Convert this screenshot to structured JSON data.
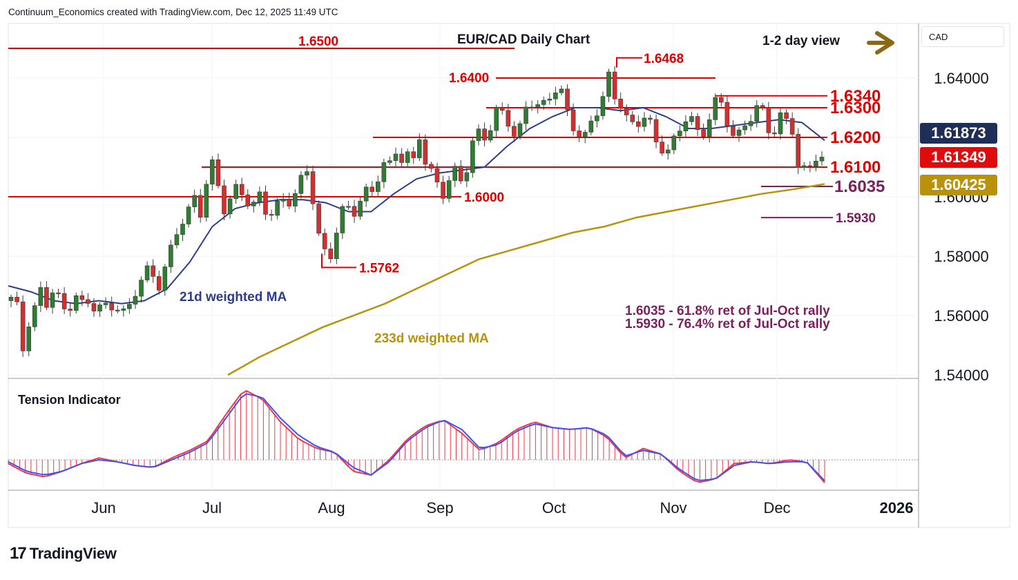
{
  "attribution": "Continuum_Economics created with TradingView.com, Dec 12, 2025 11:49 UTC",
  "brand": "TradingView",
  "currency": "CAD",
  "title": "EUR/CAD Daily Chart",
  "view_label": "1-2 day view",
  "colors": {
    "resistance_line": "#e00000",
    "retracement_line": "#7a1f5c",
    "candle_up": "#2e7d32",
    "candle_down": "#d32f2f",
    "ma21": "#2a3d8f",
    "ma233": "#b8920a",
    "arrow": "#8b6914",
    "tension_red": "#f23645",
    "tension_blue": "#3f51f5"
  },
  "price_tags": [
    {
      "value": "1.61873",
      "bg": "#1e2e57"
    },
    {
      "value": "1.61349",
      "bg": "#e00c0c"
    },
    {
      "value": "1.60425",
      "bg": "#b8920a"
    }
  ],
  "chart_data": [
    {
      "type": "candlestick",
      "title": "EUR/CAD Daily Chart",
      "y_ticks": [
        "1.64000",
        "1.62000",
        "1.60000",
        "1.58000",
        "1.56000",
        "1.54000"
      ],
      "x_ticks": [
        "Jun",
        "Jul",
        "Aug",
        "Sep",
        "Oct",
        "Nov",
        "Dec",
        "2026"
      ],
      "ylim": [
        1.5386,
        1.6497
      ],
      "ohlc_path": [
        1.565,
        1.562,
        1.548,
        1.56,
        1.564,
        1.569,
        1.562,
        1.569,
        1.564,
        1.561,
        1.566,
        1.569,
        1.561,
        1.565,
        1.56,
        1.564,
        1.562,
        1.566,
        1.562,
        1.56,
        1.565,
        1.57,
        1.575,
        1.576,
        1.57,
        1.575,
        1.58,
        1.586,
        1.591,
        1.595,
        1.601,
        1.595,
        1.605,
        1.61,
        1.602,
        1.595,
        1.6,
        1.604,
        1.602,
        1.598,
        1.596,
        1.6,
        1.593,
        1.596,
        1.599,
        1.6,
        1.598,
        1.602,
        1.606,
        1.61,
        1.59,
        1.586,
        1.577,
        1.585,
        1.593,
        1.596,
        1.594,
        1.599,
        1.603,
        1.601,
        1.605,
        1.61,
        1.609,
        1.616,
        1.614,
        1.615,
        1.612,
        1.62,
        1.61,
        1.607,
        1.605,
        1.602,
        1.607,
        1.609,
        1.604,
        1.61,
        1.62,
        1.623,
        1.621,
        1.626,
        1.63,
        1.626,
        1.623,
        1.617,
        1.63,
        1.634,
        1.631,
        1.629,
        1.632,
        1.635,
        1.637,
        1.631,
        1.626,
        1.621,
        1.618,
        1.624,
        1.628,
        1.633,
        1.642,
        1.635,
        1.631,
        1.625,
        1.623,
        1.625,
        1.628,
        1.625,
        1.618,
        1.616,
        1.614,
        1.619,
        1.624,
        1.629,
        1.626,
        1.62,
        1.623,
        1.628,
        1.633,
        1.629,
        1.623,
        1.62,
        1.624,
        1.625,
        1.628,
        1.63,
        1.624,
        1.622,
        1.628,
        1.626,
        1.624,
        1.609,
        1.608,
        1.611,
        1.615,
        1.6135
      ],
      "series": [
        {
          "name": "21d weighted MA",
          "values": [
            1.57,
            1.568,
            1.565,
            1.564,
            1.565,
            1.564,
            1.565,
            1.569,
            1.578,
            1.59,
            1.596,
            1.598,
            1.599,
            1.599,
            1.598,
            1.595,
            1.595,
            1.601,
            1.606,
            1.608,
            1.609,
            1.61,
            1.617,
            1.623,
            1.627,
            1.63,
            1.63,
            1.629,
            1.63,
            1.627,
            1.623,
            1.623,
            1.624,
            1.625,
            1.626,
            1.625,
            1.619
          ]
        },
        {
          "name": "233d weighted MA",
          "values": [
            1.54,
            1.546,
            1.551,
            1.556,
            1.56,
            1.564,
            1.569,
            1.574,
            1.579,
            1.582,
            1.585,
            1.588,
            1.59,
            1.593,
            1.595,
            1.597,
            1.599,
            1.601,
            1.6025,
            1.6043
          ]
        }
      ],
      "levels": [
        {
          "label": "1.6500",
          "value": 1.65
        },
        {
          "label": "1.6468",
          "value": 1.6468
        },
        {
          "label": "1.6400",
          "value": 1.64
        },
        {
          "label": "1.6340",
          "value": 1.634
        },
        {
          "label": "1.6300",
          "value": 1.63
        },
        {
          "label": "1.6200",
          "value": 1.62
        },
        {
          "label": "1.6100",
          "value": 1.61
        },
        {
          "label": "1.6035",
          "value": 1.6035
        },
        {
          "label": "1.6000",
          "value": 1.6
        },
        {
          "label": "1.5930",
          "value": 1.593
        },
        {
          "label": "1.5762",
          "value": 1.5762
        }
      ],
      "annotations": {
        "ma21_label": "21d weighted MA",
        "ma233_label": "233d weighted MA",
        "ret1": "1.6035 - 61.8% ret of Jul-Oct rally",
        "ret2": "1.5930 - 76.4% ret of Jul-Oct rally"
      }
    },
    {
      "type": "area",
      "title": "Tension Indicator",
      "series": [
        {
          "name": "Tension Indicator",
          "values": [
            -0.1,
            -0.35,
            -0.45,
            -0.3,
            -0.1,
            0.05,
            -0.05,
            -0.15,
            -0.2,
            0.05,
            0.25,
            0.5,
            1.2,
            1.85,
            1.6,
            1.0,
            0.55,
            0.3,
            0.2,
            -0.3,
            -0.4,
            0.0,
            0.55,
            0.9,
            1.05,
            0.7,
            0.25,
            0.45,
            0.8,
            1.0,
            0.85,
            0.8,
            0.85,
            0.6,
            0.05,
            0.3,
            0.15,
            -0.3,
            -0.6,
            -0.5,
            -0.1,
            -0.05,
            -0.1,
            0.0,
            -0.05,
            -0.6
          ]
        },
        {
          "name": "Tension signal",
          "values": [
            -0.05,
            -0.3,
            -0.4,
            -0.3,
            -0.1,
            0.0,
            -0.05,
            -0.15,
            -0.2,
            0.0,
            0.2,
            0.45,
            1.1,
            1.75,
            1.65,
            1.1,
            0.65,
            0.35,
            0.2,
            -0.2,
            -0.4,
            -0.05,
            0.5,
            0.85,
            1.05,
            0.8,
            0.3,
            0.4,
            0.75,
            0.95,
            0.85,
            0.8,
            0.85,
            0.65,
            0.1,
            0.25,
            0.15,
            -0.25,
            -0.55,
            -0.5,
            -0.15,
            -0.05,
            -0.1,
            -0.05,
            -0.05,
            -0.55
          ]
        }
      ]
    }
  ]
}
